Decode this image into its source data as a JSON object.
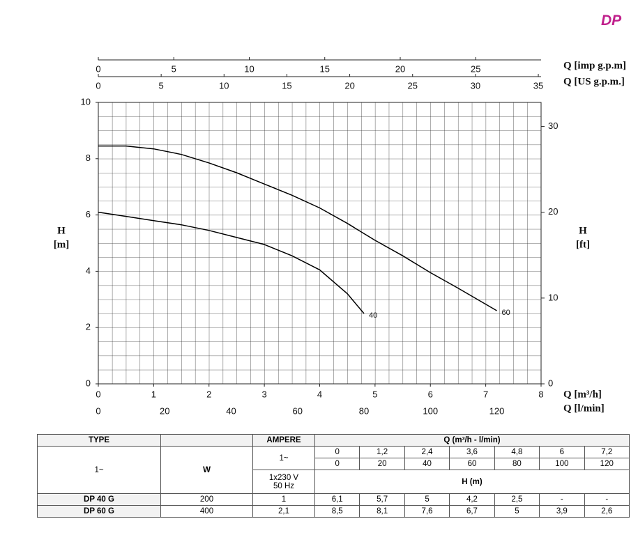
{
  "logo": "DP",
  "chart_data": {
    "type": "line",
    "x_label": "Q [m³/h]",
    "y_label_symbol": "H",
    "y_label_unit": "[m]",
    "y2_label_symbol": "H",
    "y2_label_unit": "[ft]",
    "xlim": [
      0,
      8
    ],
    "xticks": [
      0,
      1,
      2,
      3,
      4,
      5,
      6,
      7,
      8
    ],
    "ylim": [
      0,
      10
    ],
    "yticks": [
      0,
      2,
      4,
      6,
      8,
      10
    ],
    "y2lim": [
      0,
      32.81
    ],
    "y2ticks": [
      0,
      10,
      20,
      30
    ],
    "extra_x_axes": [
      {
        "label": "Q [l/min]",
        "xlim": [
          0,
          133.33
        ],
        "xticks": [
          0,
          20,
          40,
          60,
          80,
          100,
          120
        ]
      },
      {
        "label": "Q [US g.p.m.]",
        "xlim": [
          0,
          35.22
        ],
        "xticks": [
          0,
          5,
          10,
          15,
          20,
          25,
          30,
          35
        ]
      },
      {
        "label": "Q [imp g.p.m]",
        "xlim": [
          0,
          29.33
        ],
        "xticks": [
          0,
          5,
          10,
          15,
          20,
          25
        ]
      }
    ],
    "grid": true,
    "series": [
      {
        "name": "40",
        "color": "#000000",
        "x": [
          0,
          0.5,
          1,
          1.5,
          2,
          2.5,
          3,
          3.5,
          4,
          4.5,
          4.8
        ],
        "values": [
          6.1,
          5.95,
          5.8,
          5.65,
          5.45,
          5.2,
          4.95,
          4.55,
          4.05,
          3.2,
          2.5
        ]
      },
      {
        "name": "60",
        "color": "#000000",
        "x": [
          0,
          0.5,
          1,
          1.5,
          2,
          2.5,
          3,
          3.5,
          4,
          4.5,
          5,
          5.5,
          6,
          6.5,
          7.2
        ],
        "values": [
          8.45,
          8.45,
          8.35,
          8.15,
          7.85,
          7.5,
          7.1,
          6.7,
          6.25,
          5.7,
          5.1,
          4.55,
          3.95,
          3.4,
          2.6
        ]
      }
    ]
  },
  "table": {
    "type_header": "TYPE",
    "ampere_header": "AMPERE",
    "flow_header": "Q (m³/h - l/min)",
    "phase": "1~",
    "power_header": "W",
    "ampere_phase": "1~",
    "voltage": "1x230 V",
    "frequency": "50 Hz",
    "flow_m3h": [
      "0",
      "1,2",
      "2,4",
      "3,6",
      "4,8",
      "6",
      "7,2"
    ],
    "flow_lmin": [
      "0",
      "20",
      "40",
      "60",
      "80",
      "100",
      "120"
    ],
    "head_header": "H (m)",
    "rows": [
      [
        "DP 40 G",
        "200",
        "1",
        "6,1",
        "5,7",
        "5",
        "4,2",
        "2,5",
        "-",
        "-"
      ],
      [
        "DP 60 G",
        "400",
        "2,1",
        "8,5",
        "8,1",
        "7,6",
        "6,7",
        "5",
        "3,9",
        "2,6"
      ]
    ]
  }
}
